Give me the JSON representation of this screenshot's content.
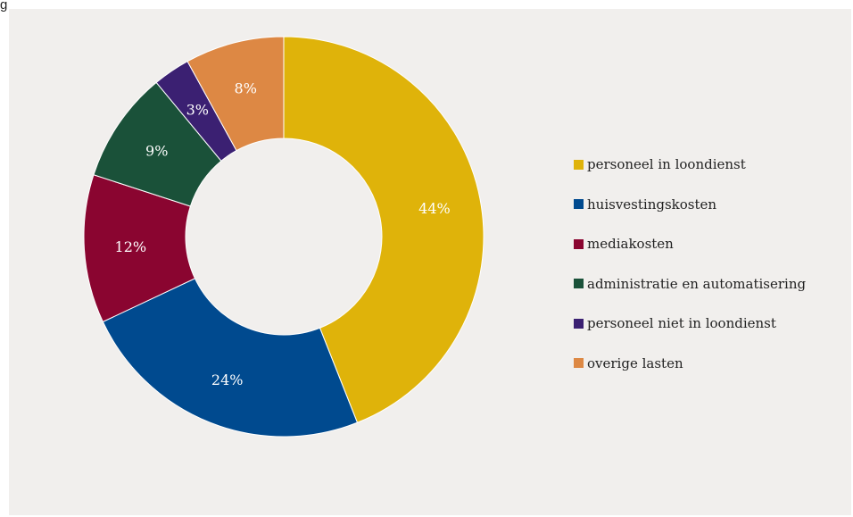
{
  "heading": "g",
  "chart_data": {
    "type": "pie",
    "donut": true,
    "title": "",
    "legend_position": "right",
    "slices": [
      {
        "label": "personeel in loondienst",
        "value": 44,
        "display": "44%",
        "color": "#dfb30a"
      },
      {
        "label": "huisvestingskosten",
        "value": 24,
        "display": "24%",
        "color": "#004a8f"
      },
      {
        "label": "mediakosten",
        "value": 12,
        "display": "12%",
        "color": "#8a0530"
      },
      {
        "label": "administratie en automatisering",
        "value": 9,
        "display": "9%",
        "color": "#1a5139"
      },
      {
        "label": "personeel niet in loondienst",
        "value": 3,
        "display": "3%",
        "color": "#3b2072"
      },
      {
        "label": "overige lasten",
        "value": 8,
        "display": "8%",
        "color": "#dd8844"
      }
    ]
  }
}
